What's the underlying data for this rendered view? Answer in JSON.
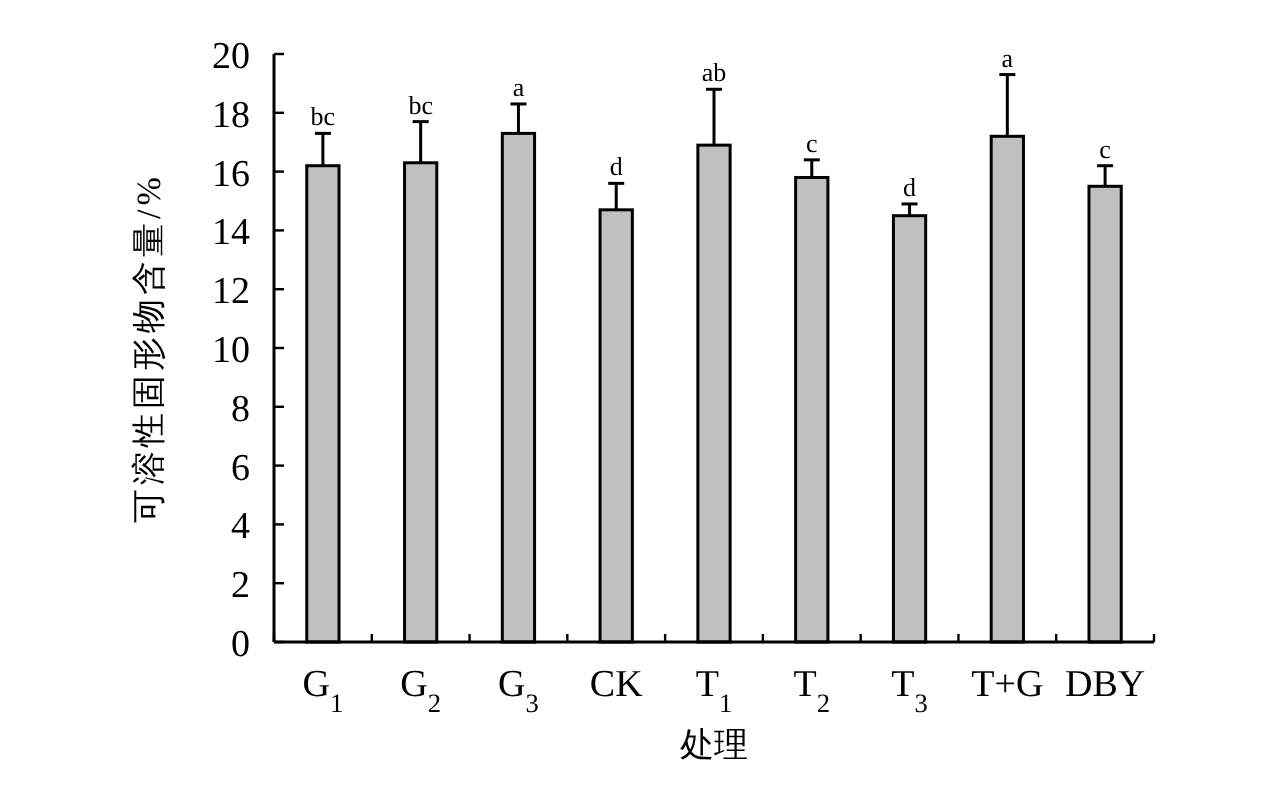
{
  "chart_data": {
    "type": "bar",
    "xlabel": "处理",
    "ylabel": "可溶性固形物含量/%",
    "categories": [
      "G$_{1}$",
      "G$_{2}$",
      "G$_{3}$",
      "CK",
      "T$_{1}$",
      "T$_{2}$",
      "T$_{3}$",
      "T+G",
      "DBY"
    ],
    "values": [
      16.2,
      16.3,
      17.3,
      14.7,
      16.9,
      15.8,
      14.5,
      17.2,
      15.5
    ],
    "errors": [
      [
        16.2,
        17.3
      ],
      [
        16.3,
        17.7
      ],
      [
        17.3,
        18.3
      ],
      [
        14.7,
        15.6
      ],
      [
        16.9,
        18.8
      ],
      [
        15.8,
        16.4
      ],
      [
        14.5,
        14.9
      ],
      [
        17.2,
        19.3
      ],
      [
        15.5,
        16.2
      ]
    ],
    "color": "#c0c0c0",
    "ylim": [
      0,
      20
    ],
    "yticks": [
      0,
      2,
      4,
      6,
      8,
      10,
      12,
      14,
      16,
      18,
      20
    ],
    "grid": false,
    "annotations": [
      "bc",
      "bc",
      "a",
      "d",
      "ab",
      "c",
      "d",
      "a",
      "c"
    ]
  }
}
